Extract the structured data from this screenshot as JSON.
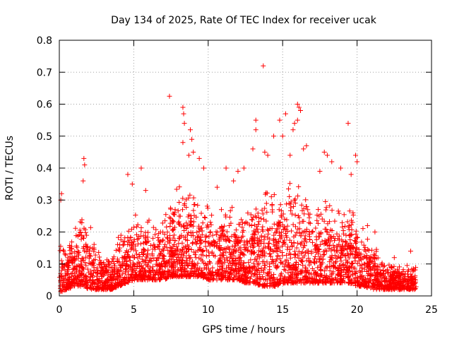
{
  "chart_data": {
    "type": "scatter",
    "title": "Day 134 of 2025, Rate Of TEC Index for receiver ucak",
    "xlabel": "GPS time / hours",
    "ylabel": "ROTI / TECUs",
    "xlim": [
      0,
      25
    ],
    "ylim": [
      0,
      0.8
    ],
    "x_ticks": [
      "0",
      "5",
      "10",
      "15",
      "20",
      "25"
    ],
    "y_ticks": [
      "0",
      "0.1",
      "0.2",
      "0.3",
      "0.4",
      "0.5",
      "0.6",
      "0.7",
      "0.8"
    ],
    "grid": true,
    "marker": "+",
    "color": "#ff0000",
    "envelope": {
      "x": [
        0,
        0.5,
        1,
        1.5,
        2,
        2.5,
        3,
        3.5,
        4,
        4.5,
        5,
        5.5,
        6,
        6.5,
        7,
        7.5,
        8,
        8.5,
        9,
        9.5,
        10,
        10.5,
        11,
        11.5,
        12,
        12.5,
        13,
        13.5,
        14,
        14.5,
        15,
        15.5,
        16,
        16.5,
        17,
        17.5,
        18,
        18.5,
        19,
        19.5,
        20,
        20.5,
        21,
        21.5,
        22,
        22.5,
        23,
        23.5,
        24
      ],
      "upper": [
        0.2,
        0.16,
        0.2,
        0.28,
        0.24,
        0.18,
        0.13,
        0.12,
        0.2,
        0.24,
        0.28,
        0.26,
        0.26,
        0.24,
        0.25,
        0.3,
        0.35,
        0.34,
        0.34,
        0.3,
        0.3,
        0.28,
        0.3,
        0.3,
        0.28,
        0.26,
        0.3,
        0.34,
        0.4,
        0.36,
        0.38,
        0.36,
        0.38,
        0.36,
        0.28,
        0.3,
        0.35,
        0.3,
        0.3,
        0.3,
        0.26,
        0.2,
        0.18,
        0.14,
        0.12,
        0.11,
        0.1,
        0.1,
        0.1
      ],
      "lower": [
        0.01,
        0.02,
        0.03,
        0.03,
        0.02,
        0.02,
        0.02,
        0.02,
        0.03,
        0.04,
        0.05,
        0.05,
        0.05,
        0.05,
        0.05,
        0.06,
        0.06,
        0.06,
        0.06,
        0.06,
        0.05,
        0.05,
        0.05,
        0.05,
        0.05,
        0.04,
        0.04,
        0.03,
        0.03,
        0.03,
        0.04,
        0.04,
        0.04,
        0.04,
        0.04,
        0.04,
        0.04,
        0.04,
        0.04,
        0.04,
        0.03,
        0.03,
        0.02,
        0.02,
        0.02,
        0.02,
        0.02,
        0.02,
        0.02
      ]
    },
    "highlight_points": [
      {
        "x": 0.1,
        "y": 0.3
      },
      {
        "x": 0.15,
        "y": 0.32
      },
      {
        "x": 1.65,
        "y": 0.43
      },
      {
        "x": 1.7,
        "y": 0.41
      },
      {
        "x": 1.6,
        "y": 0.36
      },
      {
        "x": 4.6,
        "y": 0.38
      },
      {
        "x": 4.9,
        "y": 0.35
      },
      {
        "x": 5.5,
        "y": 0.4
      },
      {
        "x": 5.8,
        "y": 0.33
      },
      {
        "x": 7.4,
        "y": 0.625
      },
      {
        "x": 8.3,
        "y": 0.59
      },
      {
        "x": 8.35,
        "y": 0.57
      },
      {
        "x": 8.4,
        "y": 0.54
      },
      {
        "x": 8.3,
        "y": 0.48
      },
      {
        "x": 8.8,
        "y": 0.52
      },
      {
        "x": 8.9,
        "y": 0.49
      },
      {
        "x": 8.7,
        "y": 0.44
      },
      {
        "x": 9.0,
        "y": 0.45
      },
      {
        "x": 9.4,
        "y": 0.43
      },
      {
        "x": 9.7,
        "y": 0.4
      },
      {
        "x": 10.6,
        "y": 0.34
      },
      {
        "x": 11.2,
        "y": 0.4
      },
      {
        "x": 11.7,
        "y": 0.36
      },
      {
        "x": 12.0,
        "y": 0.39
      },
      {
        "x": 12.4,
        "y": 0.4
      },
      {
        "x": 13.2,
        "y": 0.55
      },
      {
        "x": 13.2,
        "y": 0.52
      },
      {
        "x": 13.0,
        "y": 0.46
      },
      {
        "x": 13.7,
        "y": 0.72
      },
      {
        "x": 13.8,
        "y": 0.45
      },
      {
        "x": 14.0,
        "y": 0.44
      },
      {
        "x": 14.4,
        "y": 0.5
      },
      {
        "x": 14.8,
        "y": 0.55
      },
      {
        "x": 15.2,
        "y": 0.57
      },
      {
        "x": 15.0,
        "y": 0.5
      },
      {
        "x": 15.5,
        "y": 0.44
      },
      {
        "x": 15.7,
        "y": 0.52
      },
      {
        "x": 16.0,
        "y": 0.6
      },
      {
        "x": 16.1,
        "y": 0.59
      },
      {
        "x": 16.2,
        "y": 0.58
      },
      {
        "x": 15.8,
        "y": 0.54
      },
      {
        "x": 16.0,
        "y": 0.55
      },
      {
        "x": 16.4,
        "y": 0.46
      },
      {
        "x": 16.6,
        "y": 0.47
      },
      {
        "x": 17.5,
        "y": 0.39
      },
      {
        "x": 17.8,
        "y": 0.45
      },
      {
        "x": 18.0,
        "y": 0.44
      },
      {
        "x": 18.3,
        "y": 0.42
      },
      {
        "x": 18.9,
        "y": 0.4
      },
      {
        "x": 19.4,
        "y": 0.54
      },
      {
        "x": 19.9,
        "y": 0.44
      },
      {
        "x": 20.0,
        "y": 0.42
      },
      {
        "x": 19.6,
        "y": 0.38
      },
      {
        "x": 20.7,
        "y": 0.22
      },
      {
        "x": 21.2,
        "y": 0.2
      },
      {
        "x": 22.5,
        "y": 0.12
      },
      {
        "x": 23.6,
        "y": 0.14
      }
    ]
  }
}
